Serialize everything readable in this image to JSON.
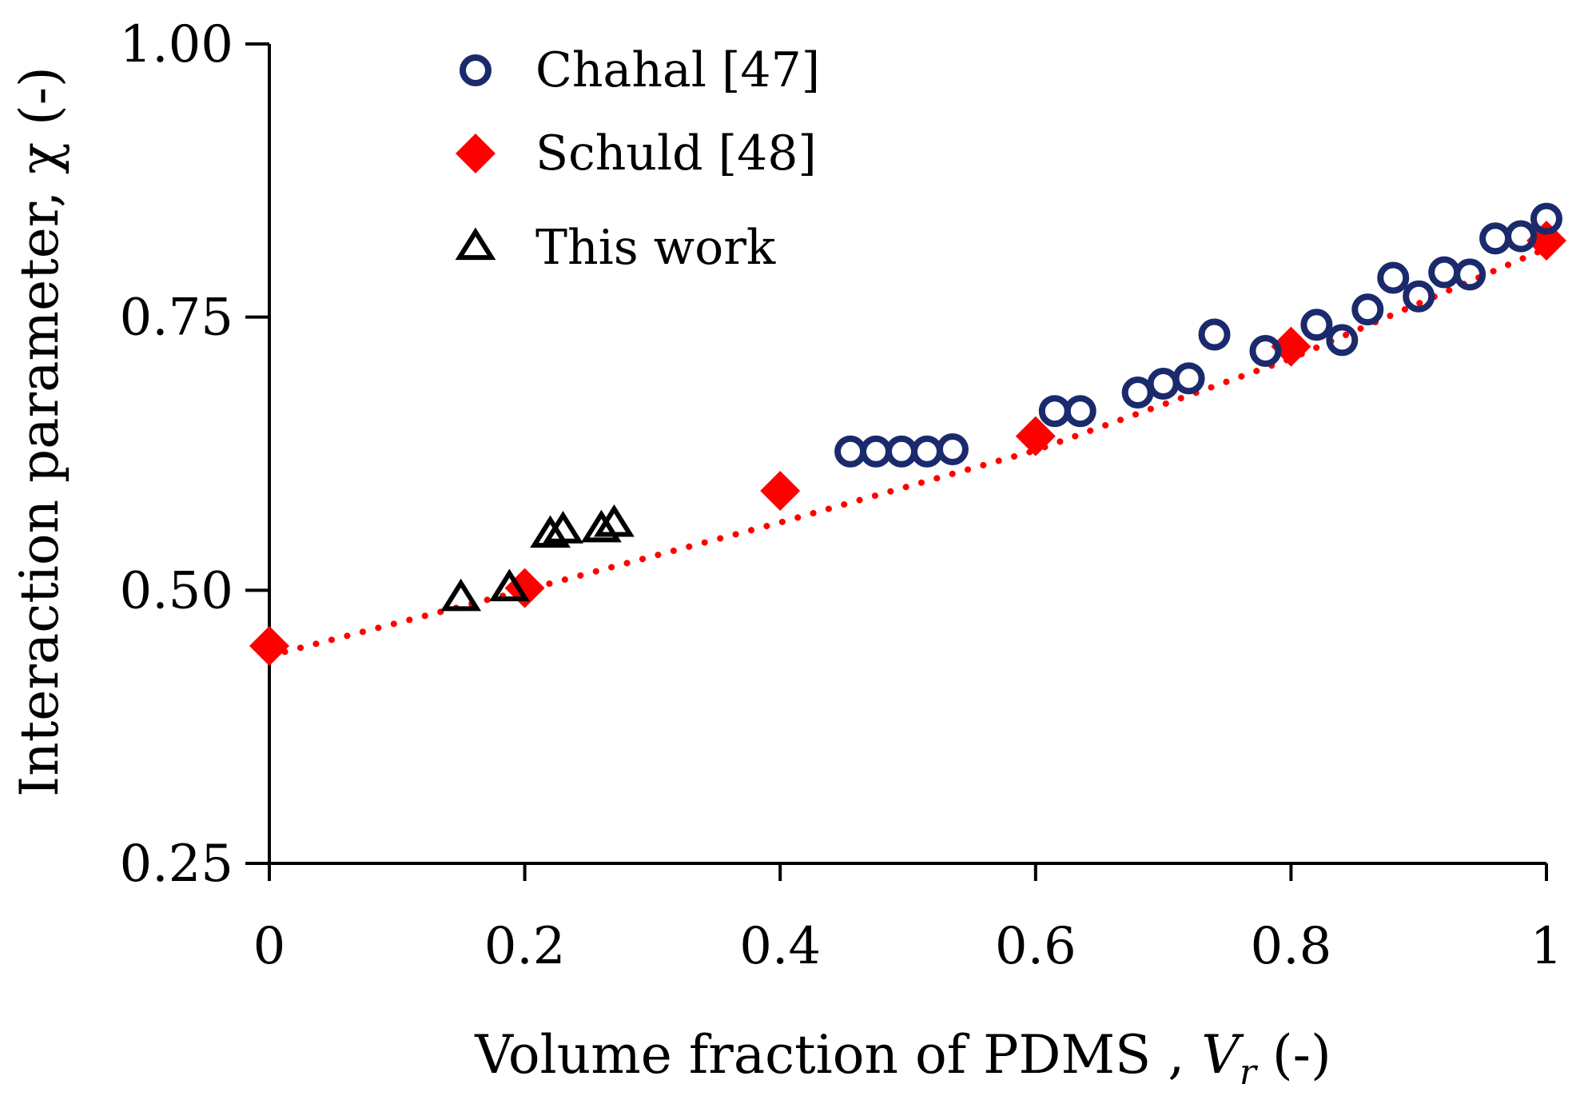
{
  "chart_data": {
    "type": "scatter",
    "title": "",
    "xlabel": {
      "prefix": "Volume fraction of PDMS ,",
      "symbol": "V",
      "subscript": "r",
      "suffix": "(-)"
    },
    "ylabel": "Interaction parameter, χ (-)",
    "xlim": [
      0,
      1
    ],
    "ylim": [
      0.25,
      1.0
    ],
    "x_ticks": [
      0,
      0.2,
      0.4,
      0.6,
      0.8,
      1
    ],
    "x_tick_labels": [
      "0",
      "0.2",
      "0.4",
      "0.6",
      "0.8",
      "1"
    ],
    "y_ticks": [
      0.25,
      0.5,
      0.75,
      1.0
    ],
    "y_tick_labels": [
      "0.25",
      "0.50",
      "0.75",
      "1.00"
    ],
    "grid": false,
    "legend_position": "top-left",
    "series": [
      {
        "name": "Chahal [47]",
        "marker": "circle",
        "color": "#1a2a6c",
        "x": [
          0.455,
          0.475,
          0.495,
          0.515,
          0.535,
          0.615,
          0.635,
          0.68,
          0.7,
          0.72,
          0.74,
          0.78,
          0.82,
          0.84,
          0.86,
          0.88,
          0.9,
          0.92,
          0.94,
          0.96,
          0.98,
          1.0
        ],
        "y": [
          0.627,
          0.627,
          0.627,
          0.627,
          0.629,
          0.664,
          0.664,
          0.681,
          0.689,
          0.694,
          0.734,
          0.719,
          0.743,
          0.729,
          0.757,
          0.786,
          0.769,
          0.791,
          0.789,
          0.822,
          0.824,
          0.84
        ]
      },
      {
        "name": "Schuld [48]",
        "marker": "diamond",
        "color": "#ff0000",
        "x": [
          0,
          0.2,
          0.4,
          0.6,
          0.8,
          1.0
        ],
        "y": [
          0.449,
          0.502,
          0.591,
          0.641,
          0.723,
          0.82
        ]
      },
      {
        "name": "This work",
        "marker": "triangle",
        "color": "#000000",
        "x": [
          0.15,
          0.188,
          0.22,
          0.23,
          0.26,
          0.27
        ],
        "y": [
          0.492,
          0.501,
          0.55,
          0.554,
          0.555,
          0.56
        ]
      }
    ],
    "trendline": {
      "series": "Schuld [48]",
      "style": "dotted",
      "color": "#ff0000",
      "x": [
        0,
        0.2,
        0.4,
        0.6,
        0.8,
        1.0
      ],
      "y": [
        0.44,
        0.5,
        0.562,
        0.628,
        0.712,
        0.813
      ]
    }
  }
}
